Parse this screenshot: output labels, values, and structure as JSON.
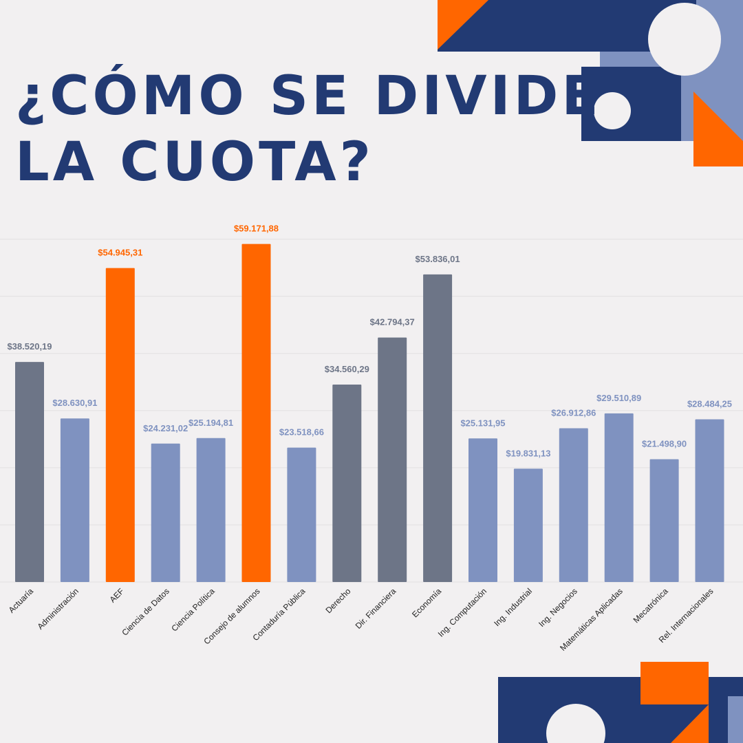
{
  "title": {
    "line1": "¿CÓMO SE DIVIDE",
    "line2": "LA CUOTA?"
  },
  "colors": {
    "navy": "#223a73",
    "slate": "#6d7587",
    "periwinkle": "#7f92c0",
    "orange": "#ff6600",
    "background": "#f2f0f1"
  },
  "chart_data": {
    "type": "bar",
    "title": "¿CÓMO SE DIVIDE LA CUOTA?",
    "xlabel": "",
    "ylabel": "",
    "ylim": [
      0,
      62000
    ],
    "grid": true,
    "categories": [
      "Actuaría",
      "Administración",
      "AEF",
      "Ciencia de Datos",
      "Ciencia Política",
      "Consejo de alumnos",
      "Contaduría Pública",
      "Derecho",
      "Dir. Financiera",
      "Economía",
      "Ing. Computación",
      "Ing. Industrial",
      "Ing. Negocios",
      "Matemáticas Aplicadas",
      "Mecatrónica",
      "Rel. Internacionales"
    ],
    "values": [
      38520.19,
      28630.91,
      54945.31,
      24231.02,
      25194.81,
      59171.88,
      23518.66,
      34560.29,
      42794.37,
      53836.01,
      25131.95,
      19831.13,
      26912.86,
      29510.89,
      21498.9,
      28484.25
    ],
    "labels": [
      "$38.520,19",
      "$28.630,91",
      "$54.945,31",
      "$24.231,02",
      "$25.194,81",
      "$59.171,88",
      "$23.518,66",
      "$34.560,29",
      "$42.794,37",
      "$53.836,01",
      "$25.131,95",
      "$19.831,13",
      "$26.912,86",
      "$29.510,89",
      "$21.498,90",
      "$28.484,25"
    ],
    "bar_colors": [
      "#6d7587",
      "#7f92c0",
      "#ff6600",
      "#7f92c0",
      "#7f92c0",
      "#ff6600",
      "#7f92c0",
      "#6d7587",
      "#6d7587",
      "#6d7587",
      "#7f92c0",
      "#7f92c0",
      "#7f92c0",
      "#7f92c0",
      "#7f92c0",
      "#7f92c0"
    ]
  }
}
